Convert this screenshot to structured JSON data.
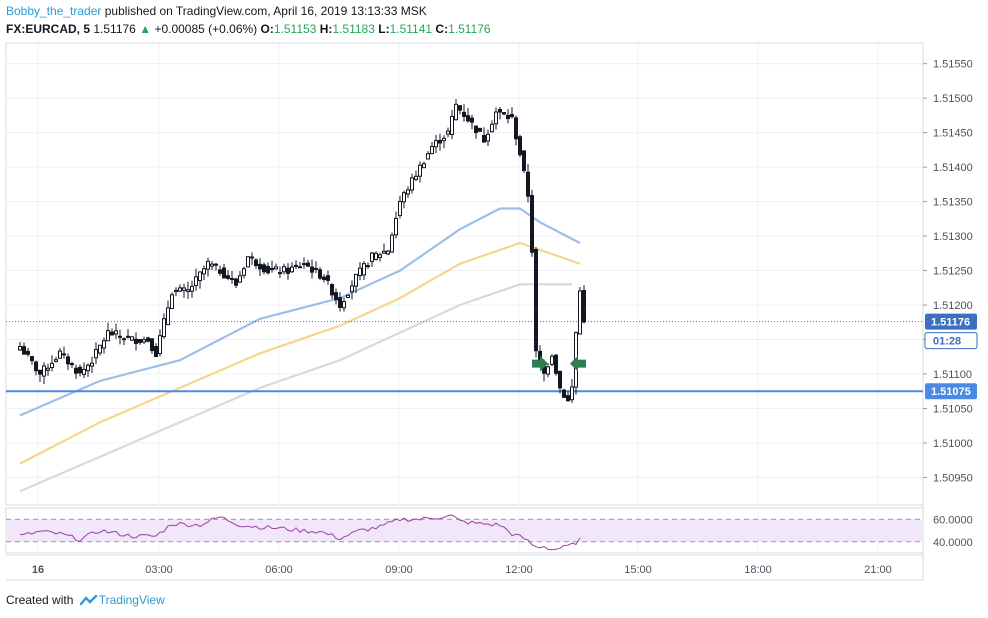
{
  "header": {
    "author": "Bobby_the_trader",
    "published_text": "published on TradingView.com, April 16, 2019 13:13:33 MSK",
    "symbol": "FX:EURCAD, 5",
    "last": "1.51176",
    "change": "+0.00085 (+0.06%)",
    "o_label": "O:",
    "o": "1.51153",
    "h_label": "H:",
    "h": "1.51183",
    "l_label": "L:",
    "l": "1.51141",
    "c_label": "C:",
    "c": "1.51176"
  },
  "footer": {
    "created_with": "Created with",
    "brand": "TradingView"
  },
  "colors": {
    "up_arrow": "#26a65b",
    "candle": "#131722",
    "ma_fast": "#9cbfe9",
    "ma_mid": "#f5d78a",
    "ma_slow": "#d9d9d9",
    "level_line": "#4a8ae6",
    "rsi_line": "#9c3fa2",
    "rsi_band": "#f2e6fb",
    "marker_arrow": "#2e7d4f"
  },
  "chart_data": {
    "type": "candlestick",
    "symbol": "FX:EURCAD",
    "timeframe": "5",
    "y_range": [
      1.5091,
      1.5158
    ],
    "y_ticks": [
      "1.51550",
      "1.51500",
      "1.51450",
      "1.51400",
      "1.51350",
      "1.51300",
      "1.51250",
      "1.51200",
      "1.51150",
      "1.51100",
      "1.51050",
      "1.51000",
      "1.50950"
    ],
    "x_ticks": [
      "16",
      "03:00",
      "06:00",
      "09:00",
      "12:00",
      "15:00",
      "18:00",
      "21:00"
    ],
    "price_badge": "1.51176",
    "countdown_badge": "01:28",
    "horizontal_level": {
      "value": 1.51075,
      "label": "1.51075"
    },
    "current_price": 1.51176,
    "candle_anchors": [
      [
        0,
        1.5114
      ],
      [
        5,
        1.511
      ],
      [
        10,
        1.5113
      ],
      [
        15,
        1.511
      ],
      [
        18,
        1.5112
      ],
      [
        22,
        1.5116
      ],
      [
        28,
        1.5115
      ],
      [
        32,
        1.5115
      ],
      [
        34,
        1.5113
      ],
      [
        38,
        1.5122
      ],
      [
        42,
        1.5122
      ],
      [
        47,
        1.5126
      ],
      [
        50,
        1.5125
      ],
      [
        54,
        1.5123
      ],
      [
        57,
        1.5127
      ],
      [
        62,
        1.5125
      ],
      [
        67,
        1.5125
      ],
      [
        71,
        1.5126
      ],
      [
        76,
        1.5124
      ],
      [
        80,
        1.512
      ],
      [
        84,
        1.5124
      ],
      [
        88,
        1.5127
      ],
      [
        92,
        1.5128
      ],
      [
        95,
        1.5135
      ],
      [
        99,
        1.5139
      ],
      [
        103,
        1.5143
      ],
      [
        107,
        1.5145
      ],
      [
        109,
        1.5149
      ],
      [
        112,
        1.5147
      ],
      [
        116,
        1.5144
      ],
      [
        119,
        1.5148
      ],
      [
        123,
        1.5147
      ],
      [
        125,
        1.5142
      ],
      [
        127,
        1.5136
      ],
      [
        128,
        1.5128
      ],
      [
        129,
        1.5113
      ],
      [
        131,
        1.511
      ],
      [
        133,
        1.5113
      ],
      [
        135,
        1.5108
      ],
      [
        137,
        1.5106
      ],
      [
        138,
        1.5108
      ],
      [
        139,
        1.5116
      ],
      [
        140,
        1.5122
      ],
      [
        141,
        1.5118
      ]
    ],
    "ma_fast": [
      [
        0,
        1.5104
      ],
      [
        20,
        1.5109
      ],
      [
        40,
        1.5112
      ],
      [
        60,
        1.5118
      ],
      [
        80,
        1.5121
      ],
      [
        95,
        1.5125
      ],
      [
        110,
        1.5131
      ],
      [
        120,
        1.5134
      ],
      [
        125,
        1.5134
      ],
      [
        130,
        1.5132
      ],
      [
        140,
        1.5129
      ]
    ],
    "ma_mid": [
      [
        0,
        1.5097
      ],
      [
        20,
        1.5103
      ],
      [
        40,
        1.5108
      ],
      [
        60,
        1.5113
      ],
      [
        80,
        1.5117
      ],
      [
        95,
        1.5121
      ],
      [
        110,
        1.5126
      ],
      [
        125,
        1.5129
      ],
      [
        130,
        1.5128
      ],
      [
        140,
        1.5126
      ]
    ],
    "ma_slow": [
      [
        0,
        1.5093
      ],
      [
        20,
        1.5098
      ],
      [
        40,
        1.5103
      ],
      [
        60,
        1.5108
      ],
      [
        80,
        1.5112
      ],
      [
        95,
        1.5116
      ],
      [
        110,
        1.512
      ],
      [
        125,
        1.5123
      ],
      [
        132,
        1.5123
      ],
      [
        138,
        1.5123
      ]
    ],
    "rsi": {
      "ticks": [
        "60.0000",
        "40.0000"
      ],
      "range": [
        30,
        70
      ],
      "points": [
        [
          0,
          45
        ],
        [
          5,
          49
        ],
        [
          10,
          47
        ],
        [
          15,
          42
        ],
        [
          20,
          50
        ],
        [
          28,
          45
        ],
        [
          34,
          45
        ],
        [
          38,
          56
        ],
        [
          45,
          55
        ],
        [
          50,
          62
        ],
        [
          55,
          55
        ],
        [
          60,
          53
        ],
        [
          65,
          52
        ],
        [
          70,
          50
        ],
        [
          75,
          49
        ],
        [
          80,
          43
        ],
        [
          85,
          50
        ],
        [
          90,
          53
        ],
        [
          95,
          60
        ],
        [
          100,
          60
        ],
        [
          105,
          62
        ],
        [
          108,
          63
        ],
        [
          110,
          58
        ],
        [
          115,
          56
        ],
        [
          120,
          55
        ],
        [
          123,
          47
        ],
        [
          126,
          43
        ],
        [
          129,
          35
        ],
        [
          131,
          36
        ],
        [
          133,
          33
        ],
        [
          136,
          35
        ],
        [
          138,
          37
        ],
        [
          140,
          42
        ],
        [
          141,
          41
        ]
      ]
    }
  }
}
